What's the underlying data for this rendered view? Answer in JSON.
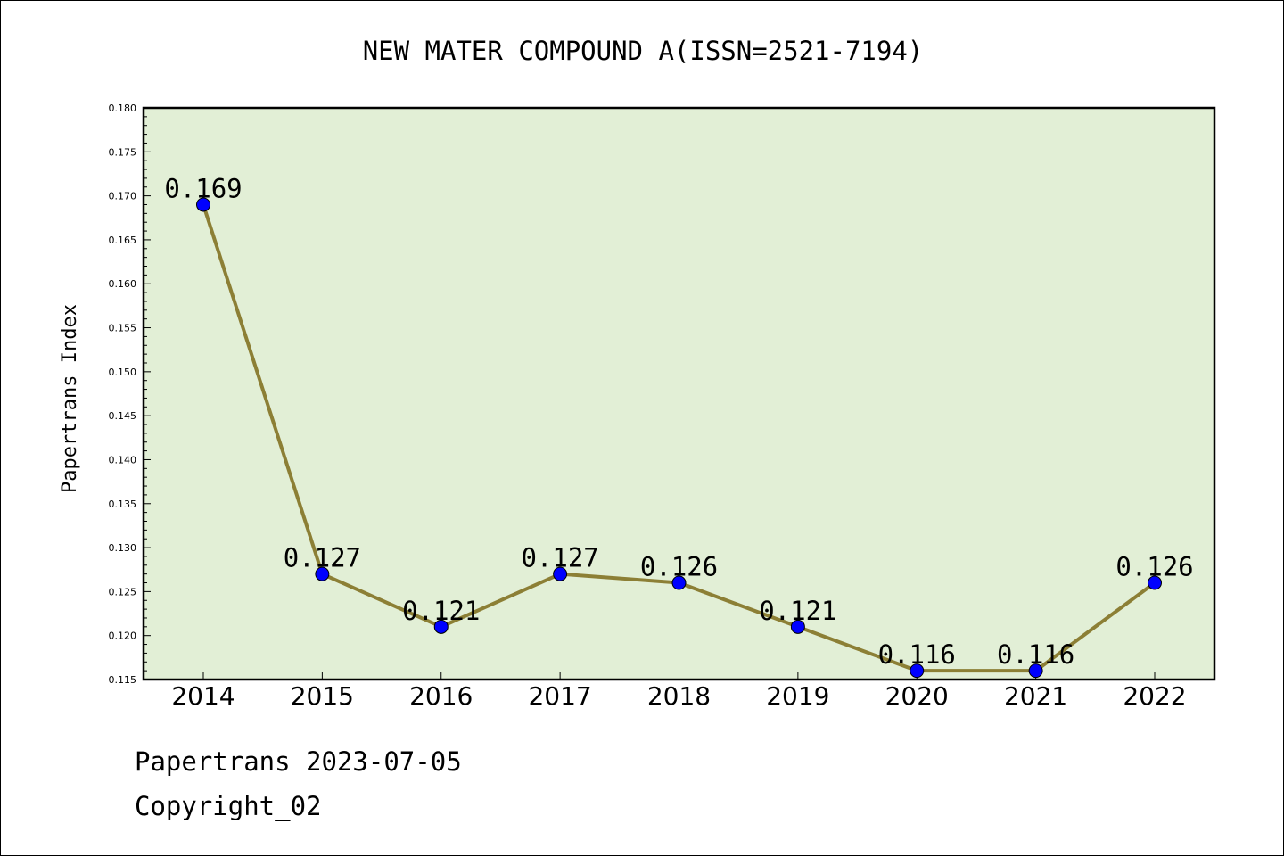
{
  "chart_data": {
    "type": "line",
    "title": "NEW MATER COMPOUND A(ISSN=2521-7194)",
    "xlabel": "",
    "ylabel": "Papertrans Index",
    "categories": [
      "2014",
      "2015",
      "2016",
      "2017",
      "2018",
      "2019",
      "2020",
      "2021",
      "2022"
    ],
    "series": [
      {
        "values": [
          0.169,
          0.127,
          0.121,
          0.127,
          0.126,
          0.121,
          0.116,
          0.116,
          0.126
        ],
        "labels": [
          "0.169",
          "0.127",
          "0.121",
          "0.127",
          "0.126",
          "0.121",
          "0.116",
          "0.116",
          "0.126"
        ]
      }
    ],
    "ylim": [
      0.115,
      0.18
    ],
    "yticks": [
      "0.115",
      "0.120",
      "0.125",
      "0.130",
      "0.135",
      "0.140",
      "0.145",
      "0.150",
      "0.155",
      "0.160",
      "0.165",
      "0.170",
      "0.175",
      "0.180"
    ],
    "grid": false,
    "legend": "none",
    "colors": {
      "plot_background": "#e2efd6",
      "line": "#8c7f35",
      "marker": "#0000ff",
      "marker_edge": "#000000",
      "axis": "#000000"
    }
  },
  "footer": {
    "date_line": "Papertrans 2023-07-05",
    "copyright_line": "Copyright_02"
  }
}
